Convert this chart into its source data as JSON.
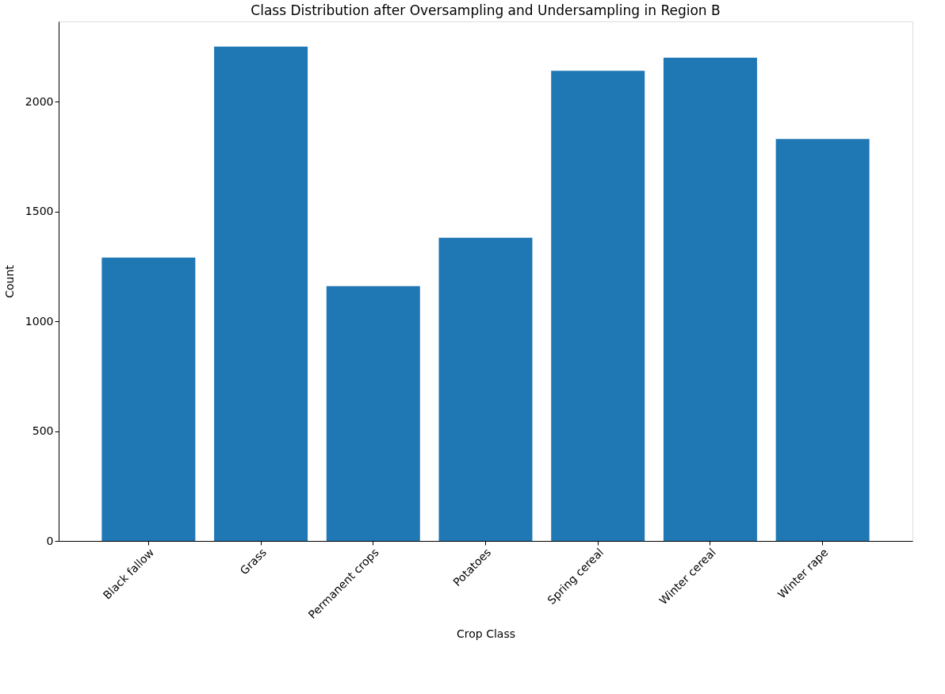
{
  "chart_data": {
    "type": "bar",
    "title": "Class Distribution after Oversampling and Undersampling in Region B",
    "xlabel": "Crop Class",
    "ylabel": "Count",
    "categories": [
      "Black fallow",
      "Grass",
      "Permanent crops",
      "Potatoes",
      "Spring cereal",
      "Winter cereal",
      "Winter rape"
    ],
    "values": [
      1290,
      2250,
      1160,
      1380,
      2140,
      2200,
      1830
    ],
    "color": "#1f77b4",
    "ylim": [
      0,
      2365
    ],
    "yticks": [
      0,
      500,
      1000,
      1500,
      2000
    ],
    "grid": false
  }
}
